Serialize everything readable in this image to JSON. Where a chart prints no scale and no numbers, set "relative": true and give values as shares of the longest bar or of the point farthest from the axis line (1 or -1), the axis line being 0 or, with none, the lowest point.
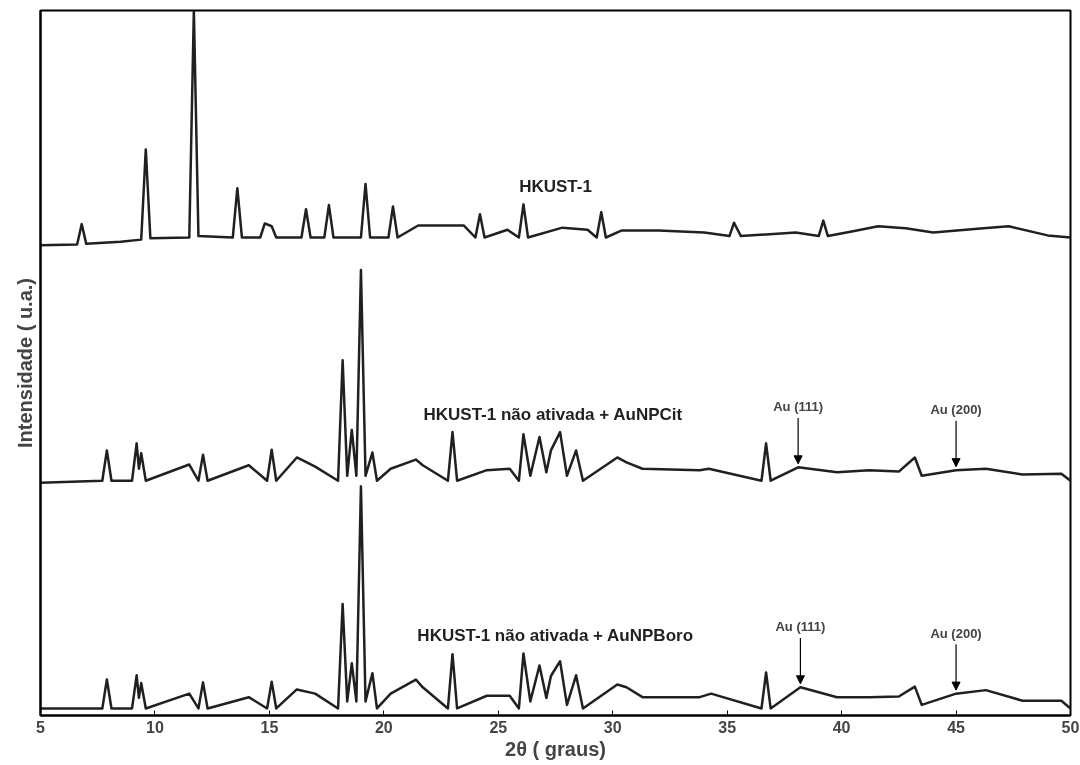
{
  "chart_data": {
    "type": "line",
    "relative": true,
    "xlabel": "2θ ( graus)",
    "ylabel": "Intensidade ( u.a.)",
    "xlim": [
      5,
      50
    ],
    "xticks": [
      5,
      10,
      15,
      20,
      25,
      30,
      35,
      40,
      45,
      50
    ],
    "grid": false,
    "marker": "none",
    "line_style": "solid",
    "series": [
      {
        "name": "HKUST-1",
        "color": "#231f20",
        "x": [
          5,
          6.6,
          6.8,
          7.0,
          8.5,
          9.4,
          9.6,
          9.8,
          11.5,
          11.7,
          11.9,
          13.4,
          13.6,
          13.8,
          14.6,
          14.8,
          15.1,
          15.3,
          16.4,
          16.6,
          16.8,
          17.4,
          17.6,
          17.8,
          19.0,
          19.2,
          19.4,
          20.2,
          20.4,
          20.6,
          21.5,
          23.5,
          24.0,
          24.2,
          24.4,
          25.4,
          25.9,
          26.1,
          26.3,
          27.8,
          28.9,
          29.3,
          29.5,
          29.7,
          30.4,
          31.0,
          32.0,
          34.0,
          35.1,
          35.3,
          35.6,
          38.0,
          39.0,
          39.2,
          39.4,
          40.5,
          41.6,
          42.8,
          44.0,
          46.2,
          47.3,
          49.0,
          50
        ],
        "values": [
          0.667,
          0.668,
          0.697,
          0.669,
          0.672,
          0.675,
          0.803,
          0.677,
          0.678,
          1.0,
          0.68,
          0.678,
          0.748,
          0.678,
          0.678,
          0.698,
          0.694,
          0.678,
          0.678,
          0.718,
          0.678,
          0.678,
          0.724,
          0.678,
          0.678,
          0.754,
          0.678,
          0.678,
          0.722,
          0.678,
          0.695,
          0.695,
          0.678,
          0.711,
          0.678,
          0.689,
          0.678,
          0.725,
          0.678,
          0.692,
          0.689,
          0.678,
          0.714,
          0.678,
          0.688,
          0.688,
          0.688,
          0.685,
          0.68,
          0.699,
          0.68,
          0.685,
          0.68,
          0.702,
          0.68,
          0.687,
          0.694,
          0.691,
          0.685,
          0.691,
          0.694,
          0.681,
          0.678
        ]
      },
      {
        "name": "HKUST-1  não ativada + AuNPCit",
        "color": "#231f20",
        "x": [
          5,
          7.7,
          7.9,
          8.1,
          9.0,
          9.2,
          9.3,
          9.4,
          9.6,
          11.5,
          11.9,
          12.1,
          12.3,
          14.1,
          14.9,
          15.1,
          15.3,
          16.2,
          17.0,
          18.0,
          18.2,
          18.4,
          18.6,
          18.8,
          19.0,
          19.2,
          19.5,
          19.7,
          20.3,
          21.4,
          21.7,
          22.8,
          23.0,
          23.2,
          24.5,
          25.5,
          25.9,
          26.1,
          26.4,
          26.8,
          27.1,
          27.3,
          27.7,
          28.0,
          28.4,
          28.7,
          30.2,
          30.6,
          31.3,
          33.8,
          34.2,
          36.5,
          36.7,
          36.9,
          38.1,
          39.8,
          41.2,
          42.5,
          43.2,
          43.5,
          45.0,
          46.3,
          47.9,
          49.6,
          50
        ],
        "values": [
          0.33,
          0.333,
          0.376,
          0.333,
          0.333,
          0.386,
          0.35,
          0.372,
          0.333,
          0.356,
          0.333,
          0.37,
          0.333,
          0.355,
          0.333,
          0.377,
          0.333,
          0.366,
          0.353,
          0.333,
          0.504,
          0.34,
          0.405,
          0.34,
          0.632,
          0.34,
          0.373,
          0.333,
          0.35,
          0.363,
          0.355,
          0.333,
          0.402,
          0.333,
          0.348,
          0.35,
          0.333,
          0.399,
          0.34,
          0.395,
          0.345,
          0.376,
          0.402,
          0.34,
          0.376,
          0.333,
          0.366,
          0.359,
          0.35,
          0.348,
          0.35,
          0.333,
          0.386,
          0.333,
          0.352,
          0.345,
          0.348,
          0.346,
          0.366,
          0.34,
          0.348,
          0.35,
          0.342,
          0.343,
          0.333
        ]
      },
      {
        "name": "HKUST-1 não ativada + AuNPBoro",
        "color": "#231f20",
        "x": [
          5,
          7.7,
          7.9,
          8.1,
          9.0,
          9.2,
          9.3,
          9.4,
          9.6,
          11.5,
          11.9,
          12.1,
          12.3,
          14.1,
          14.9,
          15.1,
          15.3,
          16.2,
          17.0,
          18.0,
          18.2,
          18.4,
          18.6,
          18.8,
          19.0,
          19.2,
          19.5,
          19.7,
          20.3,
          21.4,
          21.7,
          22.8,
          23.0,
          23.2,
          24.5,
          25.5,
          25.9,
          26.1,
          26.4,
          26.8,
          27.1,
          27.3,
          27.7,
          28.0,
          28.4,
          28.7,
          30.2,
          30.6,
          31.3,
          33.8,
          34.3,
          36.5,
          36.7,
          36.9,
          38.2,
          39.8,
          41.2,
          42.5,
          43.2,
          43.5,
          45.0,
          46.3,
          47.9,
          49.6,
          50
        ],
        "values": [
          0.01,
          0.01,
          0.051,
          0.01,
          0.01,
          0.057,
          0.025,
          0.046,
          0.01,
          0.031,
          0.01,
          0.047,
          0.01,
          0.026,
          0.01,
          0.048,
          0.01,
          0.037,
          0.031,
          0.01,
          0.158,
          0.02,
          0.074,
          0.02,
          0.325,
          0.02,
          0.06,
          0.01,
          0.031,
          0.051,
          0.04,
          0.01,
          0.087,
          0.01,
          0.028,
          0.028,
          0.01,
          0.088,
          0.02,
          0.071,
          0.025,
          0.056,
          0.077,
          0.015,
          0.057,
          0.01,
          0.044,
          0.04,
          0.026,
          0.026,
          0.031,
          0.01,
          0.061,
          0.01,
          0.04,
          0.026,
          0.026,
          0.027,
          0.041,
          0.015,
          0.031,
          0.036,
          0.021,
          0.021,
          0.01
        ]
      }
    ],
    "annotations": [
      {
        "text": "Au (111)",
        "x": 38.1,
        "y": 0.352
      },
      {
        "text": "Au (200)",
        "x": 45.0,
        "y": 0.348
      },
      {
        "text": "Au (111)",
        "x": 38.2,
        "y": 0.04
      },
      {
        "text": "Au (200)",
        "x": 45.0,
        "y": 0.031
      }
    ]
  }
}
